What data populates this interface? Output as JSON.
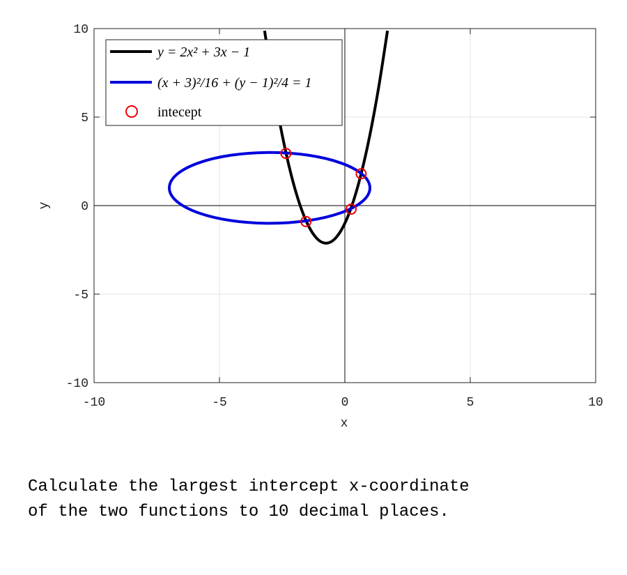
{
  "chart_data": {
    "type": "line",
    "xlabel": "x",
    "ylabel": "y",
    "xlim": [
      -10,
      10
    ],
    "ylim": [
      -10,
      10
    ],
    "xticks": [
      -10,
      -5,
      0,
      5,
      10
    ],
    "yticks": [
      -10,
      -5,
      0,
      5,
      10
    ],
    "grid": true,
    "legend": "upper left",
    "series": [
      {
        "name": "y = 2x² + 3x − 1",
        "color": "#000000",
        "kind": "curve",
        "x": [
          -3.2,
          -2.85,
          -2.5,
          -2.15,
          -1.8,
          -1.45,
          -1.1,
          -0.75,
          -0.4,
          -0.05,
          0.3,
          0.65,
          1.0,
          1.35,
          1.7
        ],
        "values": [
          9.88,
          6.695,
          4,
          1.795,
          0.08,
          -1.145,
          -1.88,
          -2.125,
          -1.88,
          -1.145,
          0.08,
          1.795,
          4,
          6.695,
          9.88
        ]
      },
      {
        "name": "(x + 3)²/16 + (y − 1)²/4 = 1",
        "color": "#0000dd",
        "kind": "closed",
        "x": [
          1,
          0.6955,
          -0.1716,
          -1.4693,
          -3,
          -4.5307,
          -5.8284,
          -6.6955,
          -7,
          -6.6955,
          -5.8284,
          -4.5307,
          -3,
          -1.4693,
          -0.1716,
          0.6955
        ],
        "values": [
          1,
          1.7654,
          2.4142,
          2.8478,
          3,
          2.8478,
          2.4142,
          1.7654,
          1,
          0.2346,
          -0.4142,
          -0.8478,
          -1,
          -0.8478,
          -0.4142,
          0.2346
        ]
      },
      {
        "name": "intecept",
        "color": "#ee0000",
        "kind": "points",
        "x": [
          -2.35,
          -1.55,
          0.25,
          0.65
        ],
        "values": [
          2.95,
          -0.9,
          -0.2,
          1.8
        ]
      }
    ]
  },
  "question": [
    "Calculate the largest intercept x-coordinate",
    "of the two functions to 10 decimal places."
  ]
}
